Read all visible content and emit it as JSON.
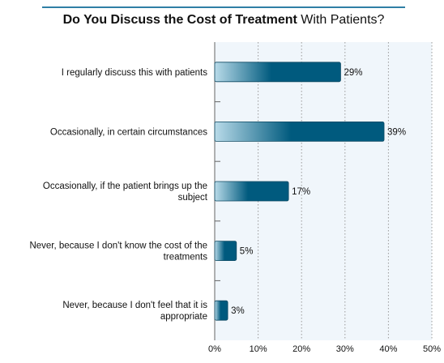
{
  "title": {
    "bold_part": "Do You Discuss the Cost of Treatment",
    "regular_part": " With Patients?"
  },
  "colors": {
    "title_rule": "#2f7fa5",
    "plot_bg": "#f0f6fb",
    "grid": "#9a9a9a",
    "bar_dark": "#005a7e",
    "bar_light": "#b9dbe9",
    "axis": "#666666"
  },
  "chart_data": {
    "type": "bar",
    "orientation": "horizontal",
    "categories": [
      [
        "I regularly discuss this with patients"
      ],
      [
        "Occasionally, in certain circumstances"
      ],
      [
        "Occasionally, if the patient brings up the",
        "subject"
      ],
      [
        "Never, because I don't know the cost of the",
        "treatments"
      ],
      [
        "Never, because I don't feel that it is",
        "appropriate"
      ]
    ],
    "values": [
      29,
      39,
      17,
      5,
      3
    ],
    "value_labels": [
      "29%",
      "39%",
      "17%",
      "5%",
      "3%"
    ],
    "xlim": [
      0,
      50
    ],
    "xticks": [
      0,
      10,
      20,
      30,
      40,
      50
    ],
    "xtick_labels": [
      "0%",
      "10%",
      "20%",
      "30%",
      "40%",
      "50%"
    ],
    "grid": "vertical-dotted"
  }
}
